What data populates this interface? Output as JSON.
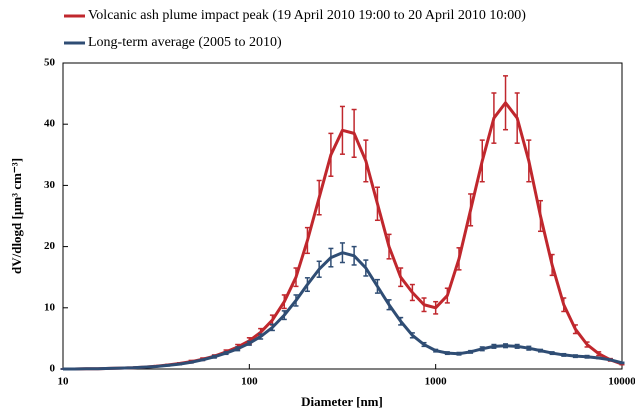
{
  "chart_data": {
    "type": "line",
    "x_label": "Diameter [nm]",
    "y_label": "dV/dlogd [µm³ cm⁻³]",
    "log_x": true,
    "legend": "top-left",
    "x": [
      10,
      11.5,
      13.3,
      15.4,
      17.8,
      20.5,
      23.7,
      27.4,
      31.6,
      36.5,
      42.2,
      48.7,
      56.2,
      64.9,
      75,
      86.6,
      100,
      115,
      133,
      154,
      178,
      205,
      237,
      274,
      316,
      365,
      422,
      487,
      562,
      649,
      750,
      866,
      1000,
      1155,
      1334,
      1540,
      1778,
      2054,
      2371,
      2738,
      3162,
      3652,
      4217,
      4870,
      5623,
      6494,
      7499,
      8660,
      10000
    ],
    "series": [
      {
        "name": "Volcanic ash plume impact peak (19 April 2010 19:00 to 20 April 2010 10:00)",
        "color": "#c0272d",
        "values": [
          0,
          0,
          0.05,
          0.05,
          0.1,
          0.15,
          0.2,
          0.3,
          0.45,
          0.65,
          0.9,
          1.2,
          1.6,
          2.1,
          2.8,
          3.6,
          4.6,
          6,
          8,
          11,
          15,
          21,
          28,
          35,
          39,
          38.5,
          34,
          27,
          20,
          15,
          12.5,
          10.5,
          10,
          12,
          18,
          26,
          34,
          41,
          43.5,
          41,
          34,
          25,
          17,
          10.5,
          6.5,
          4,
          2.5,
          1.5,
          0.8
        ],
        "errors": [
          0,
          0,
          0,
          0,
          0,
          0,
          0,
          0,
          0.1,
          0.1,
          0.1,
          0.2,
          0.2,
          0.2,
          0.3,
          0.4,
          0.5,
          0.6,
          0.8,
          1.1,
          1.5,
          2.1,
          2.8,
          3.5,
          3.9,
          3.9,
          3.4,
          2.7,
          2,
          1.5,
          1.3,
          1.1,
          1,
          1.2,
          1.8,
          2.6,
          3.4,
          4.1,
          4.4,
          4.1,
          3.4,
          2.5,
          1.7,
          1.1,
          0.7,
          0.4,
          0.3,
          0.2,
          0.1
        ]
      },
      {
        "name": "Long-term average (2005 to 2010)",
        "color": "#2f4d74",
        "values": [
          0,
          0,
          0.05,
          0.05,
          0.1,
          0.15,
          0.2,
          0.3,
          0.4,
          0.6,
          0.8,
          1.1,
          1.5,
          2,
          2.6,
          3.3,
          4.2,
          5.3,
          6.8,
          8.8,
          11.2,
          13.8,
          16.3,
          18.2,
          19,
          18.5,
          16.5,
          13.5,
          10.5,
          7.8,
          5.5,
          4,
          3,
          2.6,
          2.5,
          2.8,
          3.3,
          3.7,
          3.8,
          3.7,
          3.4,
          3,
          2.6,
          2.3,
          2.1,
          2,
          1.8,
          1.5,
          1
        ],
        "errors": [
          0,
          0,
          0,
          0,
          0,
          0,
          0,
          0,
          0,
          0.1,
          0.1,
          0.1,
          0.1,
          0.2,
          0.2,
          0.3,
          0.3,
          0.4,
          0.5,
          0.7,
          0.9,
          1.1,
          1.3,
          1.5,
          1.6,
          1.5,
          1.3,
          1.1,
          0.8,
          0.6,
          0.4,
          0.3,
          0.2,
          0.2,
          0.2,
          0.2,
          0.3,
          0.3,
          0.3,
          0.3,
          0.3,
          0.2,
          0.2,
          0.2,
          0.2,
          0.2,
          0.1,
          0.1,
          0.1
        ]
      }
    ],
    "xlim": [
      10,
      10000
    ],
    "xticks": [
      10,
      100,
      1000,
      10000
    ],
    "ylim": [
      0,
      50
    ],
    "yticks": [
      0,
      10,
      20,
      30,
      40,
      50
    ]
  }
}
